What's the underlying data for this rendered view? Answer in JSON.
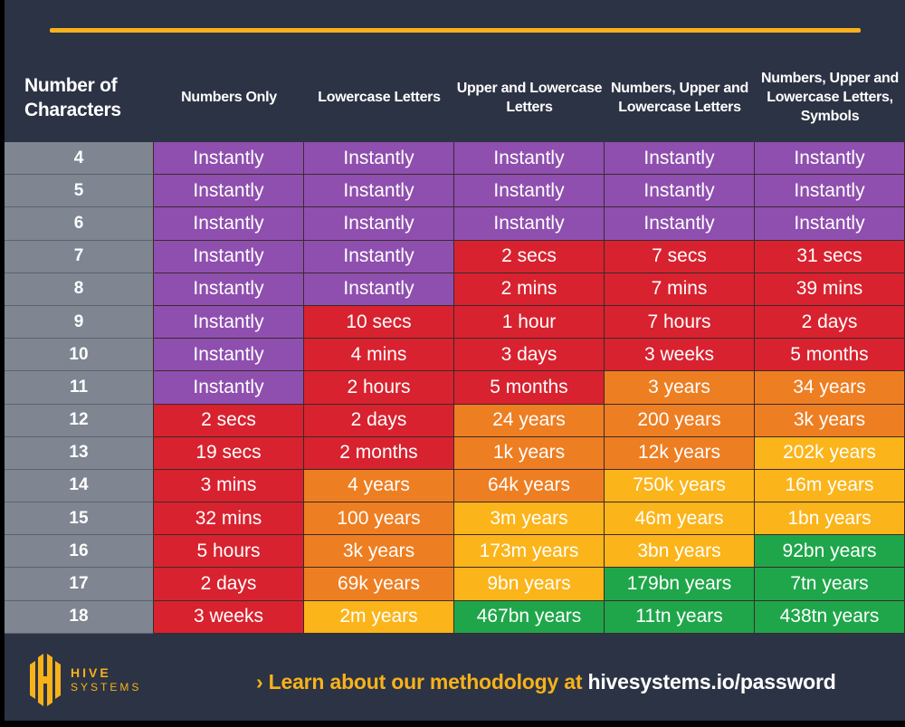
{
  "colors": {
    "purple": "#8f4faf",
    "red": "#d8222f",
    "orange": "#ee7e22",
    "yellow": "#fbb41a",
    "green": "#1fa64a",
    "background": "#2c3344",
    "accent": "#f7b21b"
  },
  "headers": [
    "Number of Characters",
    "Numbers Only",
    "Lowercase Letters",
    "Upper and Lowercase Letters",
    "Numbers, Upper and Lowercase Letters",
    "Numbers, Upper and Lowercase Letters, Symbols"
  ],
  "rows": [
    {
      "n": "4",
      "cells": [
        [
          "Instantly",
          "p"
        ],
        [
          "Instantly",
          "p"
        ],
        [
          "Instantly",
          "p"
        ],
        [
          "Instantly",
          "p"
        ],
        [
          "Instantly",
          "p"
        ]
      ]
    },
    {
      "n": "5",
      "cells": [
        [
          "Instantly",
          "p"
        ],
        [
          "Instantly",
          "p"
        ],
        [
          "Instantly",
          "p"
        ],
        [
          "Instantly",
          "p"
        ],
        [
          "Instantly",
          "p"
        ]
      ]
    },
    {
      "n": "6",
      "cells": [
        [
          "Instantly",
          "p"
        ],
        [
          "Instantly",
          "p"
        ],
        [
          "Instantly",
          "p"
        ],
        [
          "Instantly",
          "p"
        ],
        [
          "Instantly",
          "p"
        ]
      ]
    },
    {
      "n": "7",
      "cells": [
        [
          "Instantly",
          "p"
        ],
        [
          "Instantly",
          "p"
        ],
        [
          "2 secs",
          "r"
        ],
        [
          "7 secs",
          "r"
        ],
        [
          "31 secs",
          "r"
        ]
      ]
    },
    {
      "n": "8",
      "cells": [
        [
          "Instantly",
          "p"
        ],
        [
          "Instantly",
          "p"
        ],
        [
          "2 mins",
          "r"
        ],
        [
          "7 mins",
          "r"
        ],
        [
          "39 mins",
          "r"
        ]
      ]
    },
    {
      "n": "9",
      "cells": [
        [
          "Instantly",
          "p"
        ],
        [
          "10 secs",
          "r"
        ],
        [
          "1 hour",
          "r"
        ],
        [
          "7 hours",
          "r"
        ],
        [
          "2 days",
          "r"
        ]
      ]
    },
    {
      "n": "10",
      "cells": [
        [
          "Instantly",
          "p"
        ],
        [
          "4 mins",
          "r"
        ],
        [
          "3 days",
          "r"
        ],
        [
          "3 weeks",
          "r"
        ],
        [
          "5 months",
          "r"
        ]
      ]
    },
    {
      "n": "11",
      "cells": [
        [
          "Instantly",
          "p"
        ],
        [
          "2 hours",
          "r"
        ],
        [
          "5 months",
          "r"
        ],
        [
          "3 years",
          "o"
        ],
        [
          "34 years",
          "o"
        ]
      ]
    },
    {
      "n": "12",
      "cells": [
        [
          "2 secs",
          "r"
        ],
        [
          "2 days",
          "r"
        ],
        [
          "24 years",
          "o"
        ],
        [
          "200 years",
          "o"
        ],
        [
          "3k years",
          "o"
        ]
      ]
    },
    {
      "n": "13",
      "cells": [
        [
          "19 secs",
          "r"
        ],
        [
          "2 months",
          "r"
        ],
        [
          "1k years",
          "o"
        ],
        [
          "12k years",
          "o"
        ],
        [
          "202k years",
          "y"
        ]
      ]
    },
    {
      "n": "14",
      "cells": [
        [
          "3 mins",
          "r"
        ],
        [
          "4 years",
          "o"
        ],
        [
          "64k years",
          "o"
        ],
        [
          "750k years",
          "y"
        ],
        [
          "16m years",
          "y"
        ]
      ]
    },
    {
      "n": "15",
      "cells": [
        [
          "32 mins",
          "r"
        ],
        [
          "100 years",
          "o"
        ],
        [
          "3m years",
          "y"
        ],
        [
          "46m years",
          "y"
        ],
        [
          "1bn years",
          "y"
        ]
      ]
    },
    {
      "n": "16",
      "cells": [
        [
          "5 hours",
          "r"
        ],
        [
          "3k years",
          "o"
        ],
        [
          "173m years",
          "y"
        ],
        [
          "3bn years",
          "y"
        ],
        [
          "92bn years",
          "g"
        ]
      ]
    },
    {
      "n": "17",
      "cells": [
        [
          "2 days",
          "r"
        ],
        [
          "69k years",
          "o"
        ],
        [
          "9bn years",
          "y"
        ],
        [
          "179bn years",
          "g"
        ],
        [
          "7tn years",
          "g"
        ]
      ]
    },
    {
      "n": "18",
      "cells": [
        [
          "3 weeks",
          "r"
        ],
        [
          "2m years",
          "y"
        ],
        [
          "467bn years",
          "g"
        ],
        [
          "11tn years",
          "g"
        ],
        [
          "438tn years",
          "g"
        ]
      ]
    }
  ],
  "footer": {
    "logo_line1": "HIVE",
    "logo_line2": "SYSTEMS",
    "cta_prefix": "› Learn about our methodology at ",
    "cta_url": "hivesystems.io/password"
  }
}
